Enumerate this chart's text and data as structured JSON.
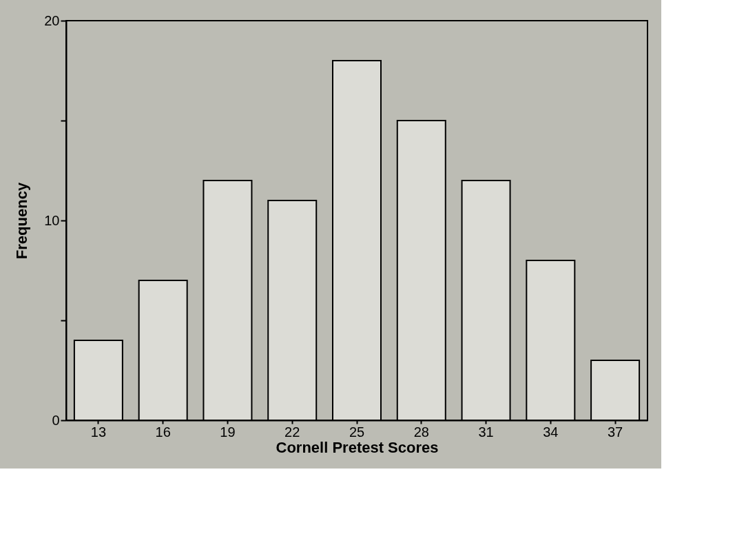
{
  "chart_data": {
    "type": "bar",
    "xlabel": "Cornell Pretest Scores",
    "ylabel": "Frequency",
    "categories": [
      "13",
      "16",
      "19",
      "22",
      "25",
      "28",
      "31",
      "34",
      "37"
    ],
    "values": [
      4,
      7,
      12,
      11,
      18,
      15,
      12,
      8,
      3
    ],
    "color": "#dcdcd6",
    "ylim": [
      0,
      20
    ],
    "yticks": [
      0,
      {
        "value": 5,
        "label": null
      },
      10,
      {
        "value": 15,
        "label": null
      },
      20
    ],
    "grid": false
  }
}
